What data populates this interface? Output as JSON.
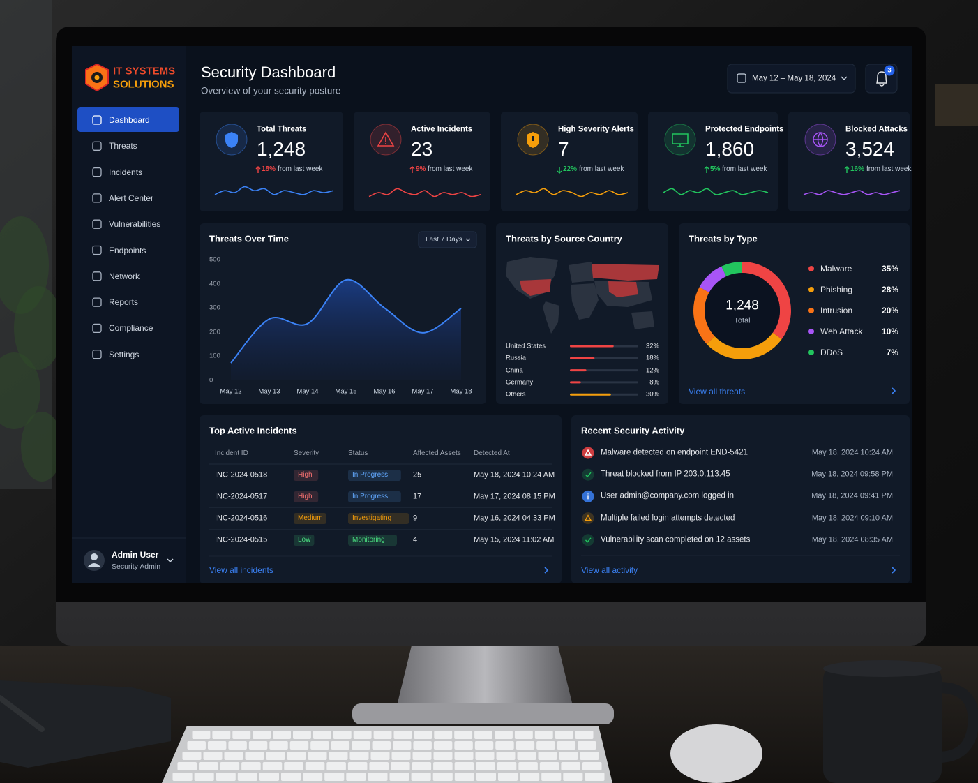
{
  "brand": {
    "line1": "IT SYSTEMS",
    "line2": "SOLUTIONS"
  },
  "nav": [
    "Dashboard",
    "Threats",
    "Incidents",
    "Alert Center",
    "Vulnerabilities",
    "Endpoints",
    "Network",
    "Reports",
    "Compliance",
    "Settings"
  ],
  "header": {
    "title": "Security Dashboard",
    "subtitle": "Overview of your security posture",
    "date_range": "May 12 – May 18, 2024",
    "notifications": 3
  },
  "kpis": [
    {
      "label": "Total Threats",
      "value": "1,248",
      "change": "18%",
      "change_text": "from last week",
      "trend": "up",
      "change_color": "#ef4444",
      "color": "#3b82f6",
      "spark": [
        4,
        6,
        5,
        8,
        6,
        7,
        4,
        6,
        5,
        4,
        6,
        5,
        6
      ]
    },
    {
      "label": "Active Incidents",
      "value": "23",
      "change": "9%",
      "change_text": "from last week",
      "trend": "up",
      "change_color": "#ef4444",
      "color": "#ef4444",
      "spark": [
        3,
        5,
        4,
        7,
        5,
        4,
        6,
        3,
        5,
        4,
        5,
        3,
        4
      ]
    },
    {
      "label": "High Severity Alerts",
      "value": "7",
      "change": "22%",
      "change_text": "from last week",
      "trend": "down",
      "change_color": "#22c55e",
      "color": "#f59e0b",
      "spark": [
        4,
        6,
        5,
        7,
        4,
        6,
        5,
        3,
        5,
        4,
        6,
        4,
        5
      ]
    },
    {
      "label": "Protected Endpoints",
      "value": "1,860",
      "change": "5%",
      "change_text": "from last week",
      "trend": "up",
      "change_color": "#22c55e",
      "color": "#22c55e",
      "spark": [
        5,
        7,
        4,
        6,
        5,
        7,
        4,
        5,
        6,
        4,
        5,
        6,
        5
      ]
    },
    {
      "label": "Blocked Attacks",
      "value": "3,524",
      "change": "16%",
      "change_text": "from last week",
      "trend": "up",
      "change_color": "#22c55e",
      "color": "#a855f7",
      "spark": [
        4,
        5,
        4,
        6,
        5,
        4,
        5,
        6,
        4,
        5,
        4,
        5,
        6
      ]
    }
  ],
  "chart_data": [
    {
      "type": "line",
      "title": "Threats Over Time",
      "period": "Last 7 Days",
      "x": [
        "May 12",
        "May 13",
        "May 14",
        "May 15",
        "May 16",
        "May 17",
        "May 18"
      ],
      "values": [
        72,
        254,
        235,
        416,
        300,
        197,
        298
      ],
      "color": "#3b82f6",
      "ylim": [
        0,
        500
      ],
      "yticks": [
        0,
        100,
        200,
        300,
        400,
        500
      ],
      "grid": false
    },
    {
      "type": "hbar",
      "title": "Threats by Source Country",
      "categories": [
        "United States",
        "Russia",
        "China",
        "Germany",
        "Others"
      ],
      "values": [
        32,
        18,
        12,
        8,
        30
      ],
      "value_labels": [
        "32%",
        "18%",
        "12%",
        "8%",
        "30%"
      ],
      "colors": [
        "#ef4444",
        "#ef4444",
        "#ef4444",
        "#ef4444",
        "#f59e0b"
      ],
      "xlim": [
        0,
        50
      ]
    },
    {
      "type": "donut",
      "title": "Threats by Type",
      "categories": [
        "Malware",
        "Phishing",
        "Intrusion",
        "Web Attack",
        "DDoS"
      ],
      "values": [
        35,
        28,
        20,
        10,
        7
      ],
      "value_labels": [
        "35%",
        "28%",
        "20%",
        "10%",
        "7%"
      ],
      "colors": [
        "#ef4444",
        "#f59e0b",
        "#f97316",
        "#a855f7",
        "#22c55e"
      ],
      "center_value": "1,248",
      "center_label": "Total",
      "link": "View all threats"
    }
  ],
  "incidents": {
    "title": "Top Active Incidents",
    "headers": [
      "Incident ID",
      "Severity",
      "Status",
      "Affected Assets",
      "Detected At"
    ],
    "rows": [
      {
        "id": "INC-2024-0518",
        "severity": "High",
        "severity_color": "#f87171",
        "status": "In Progress",
        "status_color": "#60a5fa",
        "assets": "25",
        "detected": "May 18, 2024 10:24 AM"
      },
      {
        "id": "INC-2024-0517",
        "severity": "High",
        "severity_color": "#f87171",
        "status": "In Progress",
        "status_color": "#60a5fa",
        "assets": "17",
        "detected": "May 17, 2024 08:15 PM"
      },
      {
        "id": "INC-2024-0516",
        "severity": "Medium",
        "severity_color": "#f59e0b",
        "status": "Investigating",
        "status_color": "#f59e0b",
        "assets": "9",
        "detected": "May 16, 2024 04:33 PM"
      },
      {
        "id": "INC-2024-0515",
        "severity": "Low",
        "severity_color": "#4ade80",
        "status": "Monitoring",
        "status_color": "#4ade80",
        "assets": "4",
        "detected": "May 15, 2024 11:02 AM"
      }
    ],
    "link": "View all incidents"
  },
  "activity": {
    "title": "Recent Security Activity",
    "items": [
      {
        "text": "Malware detected on endpoint END-5421",
        "time": "May 18, 2024 10:24 AM",
        "color": "#ef4444"
      },
      {
        "text": "Threat blocked from IP 203.0.113.45",
        "time": "May 18, 2024 09:58 PM",
        "color": "#22c55e"
      },
      {
        "text": "User admin@company.com logged in",
        "time": "May 18, 2024 09:41 PM",
        "color": "#3b82f6"
      },
      {
        "text": "Multiple failed login attempts detected",
        "time": "May 18, 2024 09:10 AM",
        "color": "#f59e0b"
      },
      {
        "text": "Vulnerability scan completed on 12 assets",
        "time": "May 18, 2024 08:35 AM",
        "color": "#22c55e"
      }
    ],
    "link": "View all activity"
  },
  "user": {
    "name": "Admin User",
    "role": "Security Admin"
  }
}
